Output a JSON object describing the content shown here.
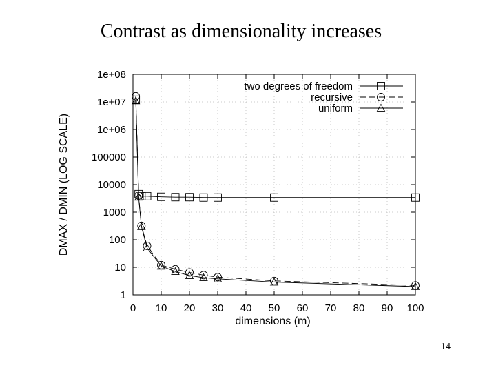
{
  "slide": {
    "title": "Contrast as dimensionality increases",
    "page_number": "14"
  },
  "chart_data": {
    "type": "line",
    "title": "",
    "xlabel": "dimensions (m)",
    "ylabel": "DMAX / DMIN (LOG SCALE)",
    "xlim": [
      0,
      100
    ],
    "ylim": [
      1,
      100000000
    ],
    "yscale": "log",
    "grid": true,
    "legend_position": "top-right",
    "x_ticks": [
      "0",
      "10",
      "20",
      "30",
      "40",
      "50",
      "60",
      "70",
      "80",
      "90",
      "100"
    ],
    "y_ticks": [
      "1",
      "10",
      "100",
      "1000",
      "10000",
      "100000",
      "1e+06",
      "1e+07",
      "1e+08"
    ],
    "series": [
      {
        "name": "two degrees of freedom",
        "marker": "square",
        "line_style": "solid",
        "x": [
          1,
          2,
          3,
          5,
          10,
          15,
          20,
          25,
          30,
          50,
          100
        ],
        "y": [
          12000000,
          4500,
          3800,
          3800,
          3600,
          3500,
          3500,
          3400,
          3400,
          3400,
          3400
        ]
      },
      {
        "name": "recursive",
        "marker": "circle",
        "line_style": "dashed",
        "x": [
          1,
          2,
          3,
          5,
          10,
          15,
          20,
          25,
          30,
          50,
          100
        ],
        "y": [
          16000000,
          4000,
          320,
          60,
          12,
          8.5,
          6.5,
          5.2,
          4.4,
          3.2,
          2.2
        ]
      },
      {
        "name": "uniform",
        "marker": "triangle",
        "line_style": "solid",
        "x": [
          1,
          2,
          3,
          5,
          10,
          15,
          20,
          25,
          30,
          50,
          100
        ],
        "y": [
          11000000,
          3500,
          300,
          50,
          11,
          7,
          5,
          4.2,
          3.8,
          2.9,
          2.0
        ]
      }
    ]
  }
}
